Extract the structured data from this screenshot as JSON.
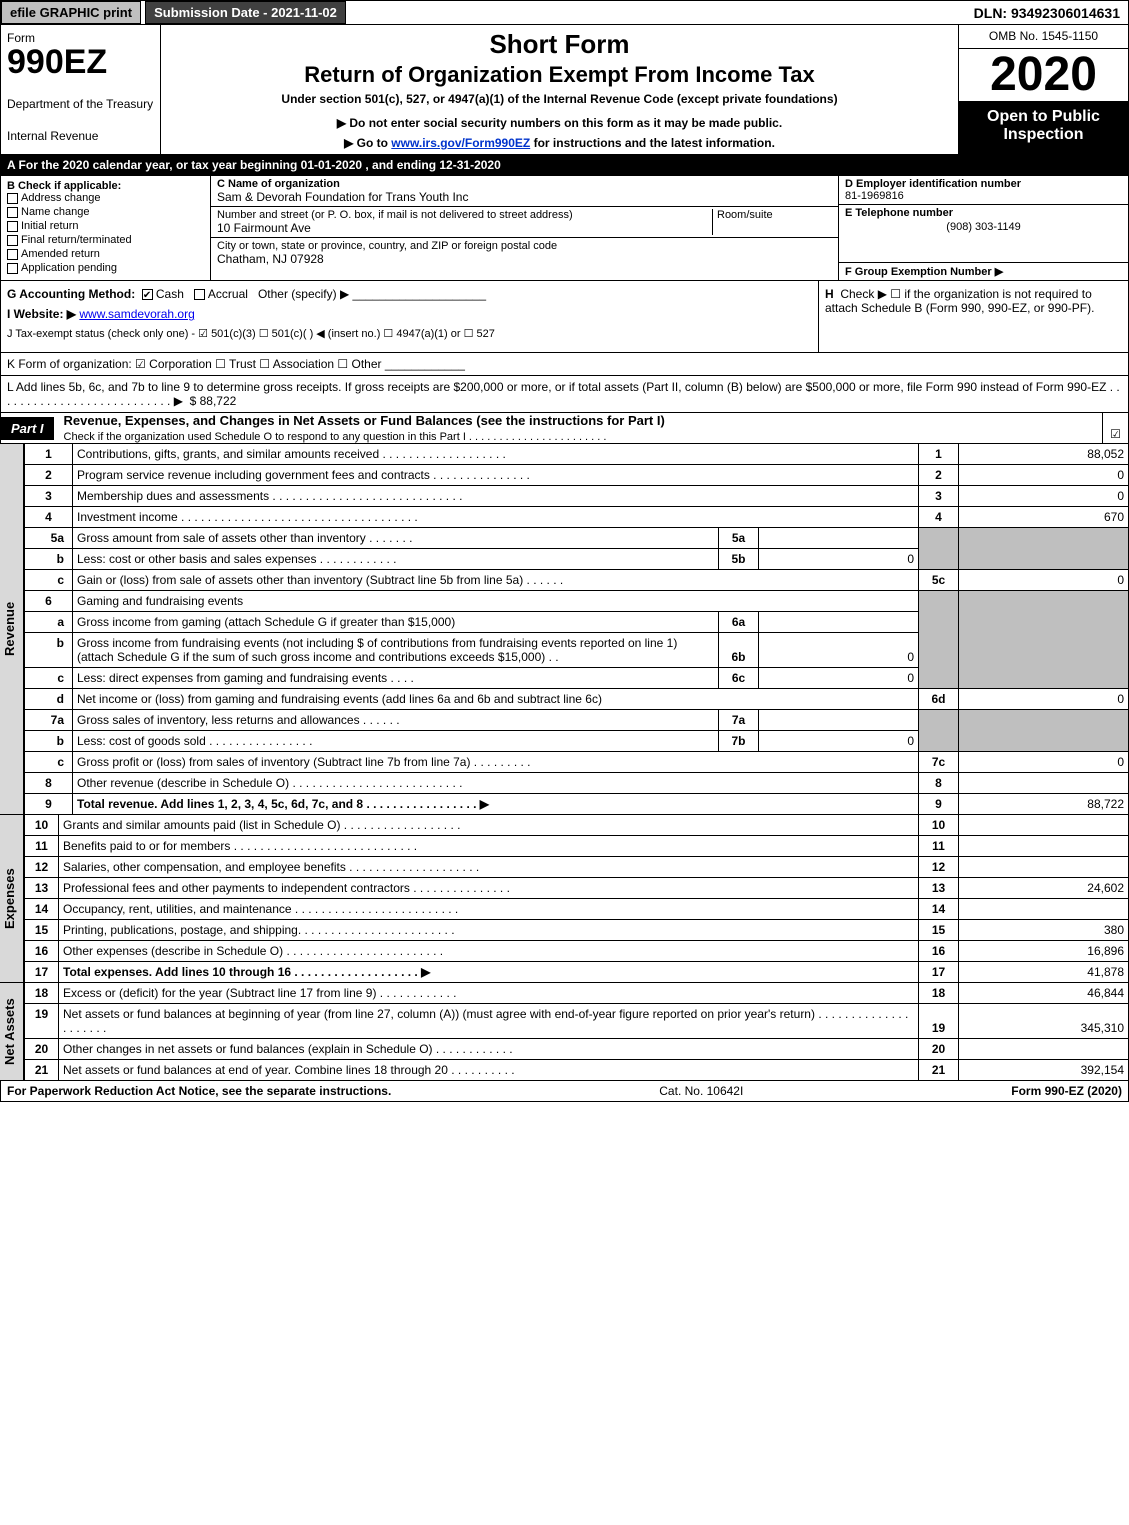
{
  "topbar": {
    "efile": "efile GRAPHIC print",
    "submission_label": "Submission Date - 2021-11-02",
    "dln": "DLN: 93492306014631"
  },
  "header": {
    "form_word": "Form",
    "form_num": "990EZ",
    "dept": "Department of the Treasury",
    "irs": "Internal Revenue",
    "short_form": "Short Form",
    "return_of": "Return of Organization Exempt From Income Tax",
    "under": "Under section 501(c), 527, or 4947(a)(1) of the Internal Revenue Code (except private foundations)",
    "do_not": "▶ Do not enter social security numbers on this form as it may be made public.",
    "goto_prefix": "▶ Go to ",
    "goto_link": "www.irs.gov/Form990EZ",
    "goto_suffix": " for instructions and the latest information.",
    "omb": "OMB No. 1545-1150",
    "year": "2020",
    "open_to": "Open to Public Inspection"
  },
  "lineA": "A For the 2020 calendar year, or tax year beginning 01-01-2020 , and ending 12-31-2020",
  "boxB": {
    "title": "B  Check if applicable:",
    "opts": [
      "Address change",
      "Name change",
      "Initial return",
      "Final return/terminated",
      "Amended return",
      "Application pending"
    ]
  },
  "boxC": {
    "name_lbl": "C Name of organization",
    "name_val": "Sam & Devorah Foundation for Trans Youth Inc",
    "street_lbl": "Number and street (or P. O. box, if mail is not delivered to street address)",
    "street_val": "10 Fairmount Ave",
    "room_lbl": "Room/suite",
    "city_lbl": "City or town, state or province, country, and ZIP or foreign postal code",
    "city_val": "Chatham, NJ  07928"
  },
  "boxD": {
    "ein_lbl": "D Employer identification number",
    "ein_val": "81-1969816",
    "tel_lbl": "E Telephone number",
    "tel_val": "(908) 303-1149",
    "grp_lbl": "F Group Exemption Number  ▶"
  },
  "lineG": {
    "label": "G Accounting Method:",
    "cash": "Cash",
    "accrual": "Accrual",
    "other": "Other (specify) ▶",
    "underline": "____________________"
  },
  "lineH": {
    "label": "H",
    "text": "Check ▶  ☐  if the organization is not required to attach Schedule B (Form 990, 990-EZ, or 990-PF)."
  },
  "lineI": {
    "label": "I Website: ▶",
    "val": "www.samdevorah.org"
  },
  "lineJ": "J Tax-exempt status (check only one) -  ☑ 501(c)(3)  ☐ 501(c)(  ) ◀ (insert no.)  ☐ 4947(a)(1) or  ☐ 527",
  "lineK": "K Form of organization:   ☑ Corporation   ☐ Trust   ☐ Association   ☐ Other  ____________",
  "lineL": {
    "text": "L Add lines 5b, 6c, and 7b to line 9 to determine gross receipts. If gross receipts are $200,000 or more, or if total assets (Part II, column (B) below) are $500,000 or more, file Form 990 instead of Form 990-EZ  .  .  .  .  .  .  .  .  .  .  .  .  .  .  .  .  .  .  .  .  .  .  .  .  .  .  .  ▶",
    "val": "$ 88,722"
  },
  "partI": {
    "label": "Part I",
    "title": "Revenue, Expenses, and Changes in Net Assets or Fund Balances (see the instructions for Part I)",
    "sub": "Check if the organization used Schedule O to respond to any question in this Part I  .  .  .  .  .  .  .  .  .  .  .  .  .  .  .  .  .  .  .  .  .  .  .",
    "checkmark": "☑"
  },
  "sections": {
    "revenue_label": "Revenue",
    "expenses_label": "Expenses",
    "netassets_label": "Net Assets"
  },
  "rows": {
    "r1": {
      "n": "1",
      "desc": "Contributions, gifts, grants, and similar amounts received  .  .  .  .  .  .  .  .  .  .  .  .  .  .  .  .  .  .  .",
      "rn": "1",
      "rv": "88,052"
    },
    "r2": {
      "n": "2",
      "desc": "Program service revenue including government fees and contracts  .  .  .  .  .  .  .  .  .  .  .  .  .  .  .",
      "rn": "2",
      "rv": "0"
    },
    "r3": {
      "n": "3",
      "desc": "Membership dues and assessments  .  .  .  .  .  .  .  .  .  .  .  .  .  .  .  .  .  .  .  .  .  .  .  .  .  .  .  .  .",
      "rn": "3",
      "rv": "0"
    },
    "r4": {
      "n": "4",
      "desc": "Investment income  .  .  .  .  .  .  .  .  .  .  .  .  .  .  .  .  .  .  .  .  .  .  .  .  .  .  .  .  .  .  .  .  .  .  .  .",
      "rn": "4",
      "rv": "670"
    },
    "r5a": {
      "n": "5a",
      "desc": "Gross amount from sale of assets other than inventory  .  .  .  .  .  .  .",
      "mn": "5a",
      "mv": ""
    },
    "r5b": {
      "n": "b",
      "desc": "Less: cost or other basis and sales expenses  .  .  .  .  .  .  .  .  .  .  .  .",
      "mn": "5b",
      "mv": "0"
    },
    "r5c": {
      "n": "c",
      "desc": "Gain or (loss) from sale of assets other than inventory (Subtract line 5b from line 5a)  .  .  .  .  .  .",
      "rn": "5c",
      "rv": "0"
    },
    "r6": {
      "n": "6",
      "desc": "Gaming and fundraising events"
    },
    "r6a": {
      "n": "a",
      "desc": "Gross income from gaming (attach Schedule G if greater than $15,000)",
      "mn": "6a",
      "mv": ""
    },
    "r6b": {
      "n": "b",
      "desc": "Gross income from fundraising events (not including $                 of contributions from fundraising events reported on line 1) (attach Schedule G if the sum of such gross income and contributions exceeds $15,000)     .   .",
      "mn": "6b",
      "mv": "0"
    },
    "r6c": {
      "n": "c",
      "desc": "Less: direct expenses from gaming and fundraising events   .  .  .  .",
      "mn": "6c",
      "mv": "0"
    },
    "r6d": {
      "n": "d",
      "desc": "Net income or (loss) from gaming and fundraising events (add lines 6a and 6b and subtract line 6c)",
      "rn": "6d",
      "rv": "0"
    },
    "r7a": {
      "n": "7a",
      "desc": "Gross sales of inventory, less returns and allowances  .  .  .  .  .  .",
      "mn": "7a",
      "mv": ""
    },
    "r7b": {
      "n": "b",
      "desc": "Less: cost of goods sold      .  .  .  .  .  .  .  .  .  .  .  .  .  .  .  .",
      "mn": "7b",
      "mv": "0"
    },
    "r7c": {
      "n": "c",
      "desc": "Gross profit or (loss) from sales of inventory (Subtract line 7b from line 7a)  .  .  .  .  .  .  .  .  .",
      "rn": "7c",
      "rv": "0"
    },
    "r8": {
      "n": "8",
      "desc": "Other revenue (describe in Schedule O)  .  .  .  .  .  .  .  .  .  .  .  .  .  .  .  .  .  .  .  .  .  .  .  .  .  .",
      "rn": "8",
      "rv": ""
    },
    "r9": {
      "n": "9",
      "desc": "Total revenue. Add lines 1, 2, 3, 4, 5c, 6d, 7c, and 8   .  .  .  .  .  .  .  .  .  .  .  .  .  .  .  .  .   ▶",
      "rn": "9",
      "rv": "88,722",
      "bold": true
    },
    "r10": {
      "n": "10",
      "desc": "Grants and similar amounts paid (list in Schedule O)  .  .  .  .  .  .  .  .  .  .  .  .  .  .  .  .  .  .",
      "rn": "10",
      "rv": ""
    },
    "r11": {
      "n": "11",
      "desc": "Benefits paid to or for members      .  .  .  .  .  .  .  .  .  .  .  .  .  .  .  .  .  .  .  .  .  .  .  .  .  .  .  .",
      "rn": "11",
      "rv": ""
    },
    "r12": {
      "n": "12",
      "desc": "Salaries, other compensation, and employee benefits  .  .  .  .  .  .  .  .  .  .  .  .  .  .  .  .  .  .  .  .",
      "rn": "12",
      "rv": ""
    },
    "r13": {
      "n": "13",
      "desc": "Professional fees and other payments to independent contractors  .  .  .  .  .  .  .  .  .  .  .  .  .  .  .",
      "rn": "13",
      "rv": "24,602"
    },
    "r14": {
      "n": "14",
      "desc": "Occupancy, rent, utilities, and maintenance .  .  .  .  .  .  .  .  .  .  .  .  .  .  .  .  .  .  .  .  .  .  .  .  .",
      "rn": "14",
      "rv": ""
    },
    "r15": {
      "n": "15",
      "desc": "Printing, publications, postage, and shipping.  .  .  .  .  .  .  .  .  .  .  .  .  .  .  .  .  .  .  .  .  .  .  .",
      "rn": "15",
      "rv": "380"
    },
    "r16": {
      "n": "16",
      "desc": "Other expenses (describe in Schedule O)      .  .  .  .  .  .  .  .  .  .  .  .  .  .  .  .  .  .  .  .  .  .  .  .",
      "rn": "16",
      "rv": "16,896"
    },
    "r17": {
      "n": "17",
      "desc": "Total expenses. Add lines 10 through 16      .  .  .  .  .  .  .  .  .  .  .  .  .  .  .  .  .  .  .   ▶",
      "rn": "17",
      "rv": "41,878",
      "bold": true
    },
    "r18": {
      "n": "18",
      "desc": "Excess or (deficit) for the year (Subtract line 17 from line 9)       .  .  .  .  .  .  .  .  .  .  .  .",
      "rn": "18",
      "rv": "46,844"
    },
    "r19": {
      "n": "19",
      "desc": "Net assets or fund balances at beginning of year (from line 27, column (A)) (must agree with end-of-year figure reported on prior year's return) .  .  .  .  .  .  .  .  .  .  .  .  .  .  .  .  .  .  .  .  .",
      "rn": "19",
      "rv": "345,310"
    },
    "r20": {
      "n": "20",
      "desc": "Other changes in net assets or fund balances (explain in Schedule O) .  .  .  .  .  .  .  .  .  .  .  .",
      "rn": "20",
      "rv": ""
    },
    "r21": {
      "n": "21",
      "desc": "Net assets or fund balances at end of year. Combine lines 18 through 20 .  .  .  .  .  .  .  .  .  .",
      "rn": "21",
      "rv": "392,154"
    }
  },
  "footer": {
    "left": "For Paperwork Reduction Act Notice, see the separate instructions.",
    "mid": "Cat. No. 10642I",
    "right": "Form 990-EZ (2020)"
  },
  "colors": {
    "black": "#000000",
    "grey_btn": "#bfbfbf",
    "dark_grey": "#404040",
    "side_grey": "#d9d9d9",
    "link": "#0033cc"
  }
}
